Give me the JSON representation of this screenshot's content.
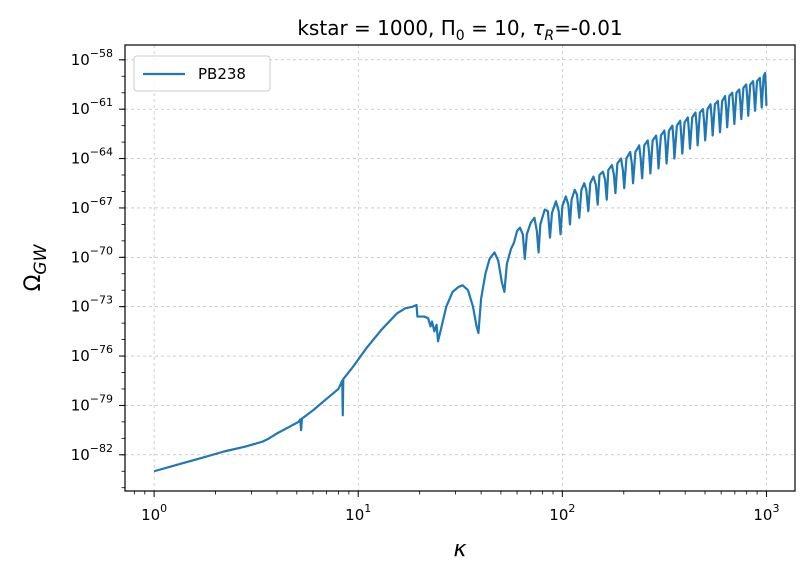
{
  "chart_data": {
    "type": "line",
    "title": "kstar = 1000, Π₀ = 10, τR=-0.01",
    "title_parts": {
      "p1": "kstar = 1000, Π",
      "p1_sub": "0",
      "p2": " = 10, ",
      "tau": "τ",
      "tau_sub": "R",
      "p3": "=-0.01"
    },
    "xlabel": "κ",
    "ylabel": "Ω",
    "ylabel_sub": "GW",
    "x_scale": "log",
    "y_scale": "log",
    "xlim": [
      0.72,
      1380
    ],
    "ylim_exp": [
      -84.2,
      -57.1
    ],
    "x_ticks": [
      {
        "exp": 0,
        "base": "10",
        "sup": "0"
      },
      {
        "exp": 1,
        "base": "10",
        "sup": "1"
      },
      {
        "exp": 2,
        "base": "10",
        "sup": "2"
      },
      {
        "exp": 3,
        "base": "10",
        "sup": "3"
      }
    ],
    "y_ticks": [
      {
        "exp": -82,
        "base": "10",
        "sup": "−82"
      },
      {
        "exp": -79,
        "base": "10",
        "sup": "−79"
      },
      {
        "exp": -76,
        "base": "10",
        "sup": "−76"
      },
      {
        "exp": -73,
        "base": "10",
        "sup": "−73"
      },
      {
        "exp": -70,
        "base": "10",
        "sup": "−70"
      },
      {
        "exp": -67,
        "base": "10",
        "sup": "−67"
      },
      {
        "exp": -64,
        "base": "10",
        "sup": "−64"
      },
      {
        "exp": -61,
        "base": "10",
        "sup": "−61"
      },
      {
        "exp": -58,
        "base": "10",
        "sup": "−58"
      }
    ],
    "grid": true,
    "legend": {
      "position": "top-left",
      "entries": [
        "PB238"
      ]
    },
    "series": [
      {
        "name": "PB238",
        "color": "#1f77b4",
        "points": [
          [
            1.0,
            -83.0
          ],
          [
            1.3,
            -82.6
          ],
          [
            1.7,
            -82.2
          ],
          [
            2.2,
            -81.8
          ],
          [
            2.8,
            -81.5
          ],
          [
            3.4,
            -81.2
          ],
          [
            3.6,
            -81.05
          ],
          [
            4.0,
            -80.7
          ],
          [
            4.6,
            -80.3
          ],
          [
            5.1,
            -80.0
          ],
          [
            5.2,
            -79.85
          ],
          [
            5.25,
            -80.5
          ],
          [
            5.3,
            -79.8
          ],
          [
            6.0,
            -79.3
          ],
          [
            7.0,
            -78.6
          ],
          [
            8.0,
            -78.0
          ],
          [
            8.35,
            -77.5
          ],
          [
            8.4,
            -79.6
          ],
          [
            8.45,
            -77.4
          ],
          [
            9.5,
            -76.6
          ],
          [
            11.0,
            -75.5
          ],
          [
            13.0,
            -74.4
          ],
          [
            15.5,
            -73.4
          ],
          [
            17.0,
            -73.1
          ],
          [
            18.5,
            -73.0
          ],
          [
            19.3,
            -72.9
          ],
          [
            19.5,
            -73.6
          ],
          [
            21.0,
            -73.6
          ],
          [
            22.0,
            -73.7
          ],
          [
            22.6,
            -74.2
          ],
          [
            23.0,
            -73.9
          ],
          [
            23.6,
            -74.5
          ],
          [
            24.2,
            -74.1
          ],
          [
            24.6,
            -75.1
          ],
          [
            25.5,
            -74.3
          ],
          [
            27.0,
            -73.0
          ],
          [
            29.0,
            -72.1
          ],
          [
            31.0,
            -71.8
          ],
          [
            32.5,
            -71.7
          ],
          [
            34.5,
            -72.0
          ],
          [
            36.5,
            -73.0
          ],
          [
            38.0,
            -74.2
          ],
          [
            38.8,
            -74.6
          ],
          [
            40.0,
            -72.5
          ],
          [
            42.0,
            -71.0
          ],
          [
            44.0,
            -70.1
          ],
          [
            46.5,
            -69.7
          ],
          [
            48.5,
            -70.2
          ],
          [
            50.5,
            -71.5
          ],
          [
            52.0,
            -72.1
          ],
          [
            53.5,
            -70.4
          ],
          [
            56.0,
            -69.5
          ],
          [
            58.0,
            -69.1
          ],
          [
            60.0,
            -68.4
          ],
          [
            62.0,
            -68.2
          ],
          [
            64.0,
            -68.6
          ],
          [
            65.5,
            -70.1
          ],
          [
            67.0,
            -68.6
          ],
          [
            70.0,
            -67.9
          ],
          [
            73.0,
            -67.6
          ],
          [
            75.0,
            -68.4
          ],
          [
            76.5,
            -69.7
          ],
          [
            78.0,
            -68.0
          ],
          [
            82.0,
            -67.1
          ],
          [
            85.0,
            -67.2
          ],
          [
            87.0,
            -68.8
          ],
          [
            89.0,
            -67.3
          ],
          [
            93.0,
            -66.6
          ],
          [
            96.0,
            -67.2
          ],
          [
            98.0,
            -68.6
          ],
          [
            100.0,
            -66.9
          ],
          [
            104.0,
            -66.3
          ],
          [
            107.0,
            -66.8
          ],
          [
            109.0,
            -68.0
          ],
          [
            111.0,
            -66.5
          ],
          [
            115.0,
            -65.9
          ],
          [
            118.0,
            -66.2
          ],
          [
            121.0,
            -67.6
          ],
          [
            124.0,
            -65.9
          ],
          [
            128.0,
            -65.5
          ],
          [
            131.0,
            -65.9
          ],
          [
            134.0,
            -67.2
          ],
          [
            137.0,
            -65.5
          ],
          [
            142.0,
            -65.1
          ],
          [
            146.0,
            -65.6
          ],
          [
            149.0,
            -66.8
          ],
          [
            152.0,
            -65.0
          ],
          [
            158.0,
            -64.8
          ],
          [
            162.0,
            -65.3
          ],
          [
            165.0,
            -66.5
          ],
          [
            168.0,
            -64.7
          ],
          [
            175.0,
            -64.4
          ],
          [
            179.0,
            -65.0
          ],
          [
            182.0,
            -66.1
          ],
          [
            186.0,
            -64.3
          ],
          [
            194.0,
            -64.0
          ],
          [
            198.0,
            -64.7
          ],
          [
            201.0,
            -65.8
          ],
          [
            206.0,
            -64.0
          ],
          [
            215.0,
            -63.6
          ],
          [
            219.0,
            -64.3
          ],
          [
            222.0,
            -65.5
          ],
          [
            228.0,
            -63.6
          ],
          [
            238.0,
            -63.2
          ],
          [
            242.0,
            -64.0
          ],
          [
            246.0,
            -65.2
          ],
          [
            252.0,
            -63.2
          ],
          [
            262.0,
            -62.9
          ],
          [
            266.0,
            -63.6
          ],
          [
            270.0,
            -64.9
          ],
          [
            277.0,
            -62.9
          ],
          [
            288.0,
            -62.6
          ],
          [
            292.0,
            -63.3
          ],
          [
            296.0,
            -64.6
          ],
          [
            304.0,
            -62.6
          ],
          [
            316.0,
            -62.3
          ],
          [
            320.0,
            -63.0
          ],
          [
            324.0,
            -64.3
          ],
          [
            333.0,
            -62.3
          ],
          [
            346.0,
            -62.0
          ],
          [
            350.0,
            -62.8
          ],
          [
            354.0,
            -64.0
          ],
          [
            364.0,
            -62.0
          ],
          [
            378.0,
            -61.7
          ],
          [
            382.0,
            -62.5
          ],
          [
            387.0,
            -63.7
          ],
          [
            397.0,
            -61.8
          ],
          [
            412.0,
            -61.5
          ],
          [
            417.0,
            -62.3
          ],
          [
            422.0,
            -63.4
          ],
          [
            433.0,
            -61.5
          ],
          [
            449.0,
            -61.2
          ],
          [
            455.0,
            -62.0
          ],
          [
            460.0,
            -63.2
          ],
          [
            472.0,
            -61.2
          ],
          [
            489.0,
            -61.0
          ],
          [
            495.0,
            -61.8
          ],
          [
            501.0,
            -62.9
          ],
          [
            514.0,
            -61.0
          ],
          [
            532.0,
            -60.7
          ],
          [
            539.0,
            -61.5
          ],
          [
            545.0,
            -62.6
          ],
          [
            559.0,
            -60.7
          ],
          [
            578.0,
            -60.5
          ],
          [
            585.0,
            -61.3
          ],
          [
            592.0,
            -62.4
          ],
          [
            607.0,
            -60.5
          ],
          [
            627.0,
            -60.2
          ],
          [
            635.0,
            -61.0
          ],
          [
            642.0,
            -62.1
          ],
          [
            658.0,
            -60.2
          ],
          [
            680.0,
            -60.0
          ],
          [
            688.0,
            -60.8
          ],
          [
            696.0,
            -61.9
          ],
          [
            713.0,
            -60.0
          ],
          [
            736.0,
            -59.8
          ],
          [
            745.0,
            -60.6
          ],
          [
            753.0,
            -61.6
          ],
          [
            771.0,
            -59.7
          ],
          [
            796.0,
            -59.5
          ],
          [
            805.0,
            -60.3
          ],
          [
            814.0,
            -61.4
          ],
          [
            833.0,
            -59.5
          ],
          [
            860.0,
            -59.3
          ],
          [
            870.0,
            -60.1
          ],
          [
            879.0,
            -61.1
          ],
          [
            899.0,
            -59.3
          ],
          [
            928.0,
            -59.1
          ],
          [
            938.0,
            -59.9
          ],
          [
            948.0,
            -60.9
          ],
          [
            969.0,
            -59.0
          ],
          [
            985.0,
            -58.8
          ],
          [
            992.0,
            -59.6
          ],
          [
            1000.0,
            -60.8
          ]
        ]
      }
    ]
  }
}
